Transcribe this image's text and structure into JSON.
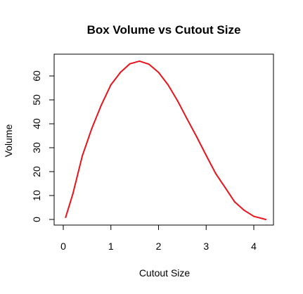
{
  "chart_data": {
    "type": "line",
    "title": "Box Volume vs Cutout Size",
    "xlabel": "Cutout Size",
    "ylabel": "Volume",
    "xlim": [
      0,
      4.25
    ],
    "ylim": [
      0,
      66.2
    ],
    "x_ticks": [
      "0",
      "1",
      "2",
      "3",
      "4"
    ],
    "y_ticks": [
      "0",
      "10",
      "20",
      "30",
      "40",
      "50",
      "60"
    ],
    "grid": false,
    "series": [
      {
        "color": "#e8141b",
        "x": [
          0.05,
          0.2,
          0.4,
          0.6,
          0.8,
          1.0,
          1.2,
          1.4,
          1.6,
          1.8,
          2.0,
          2.2,
          2.4,
          2.6,
          2.8,
          3.0,
          3.2,
          3.4,
          3.6,
          3.8,
          4.0,
          4.25
        ],
        "y": [
          0.9,
          10.6,
          26.6,
          38.1,
          47.9,
          56.3,
          61.5,
          65.1,
          66.2,
          64.9,
          61.5,
          56.3,
          49.6,
          42.0,
          34.6,
          26.8,
          19.2,
          13.3,
          7.3,
          3.8,
          1.3,
          0.0
        ]
      }
    ]
  }
}
